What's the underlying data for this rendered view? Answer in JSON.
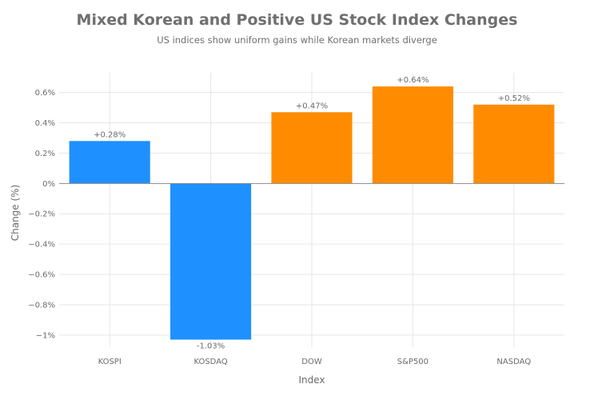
{
  "chart_data": {
    "type": "bar",
    "title": "Mixed Korean and Positive US Stock Index Changes",
    "subtitle": "US indices show uniform gains while Korean markets diverge",
    "xlabel": "Index",
    "ylabel": "Change (%)",
    "categories": [
      "KOSPI",
      "KOSDAQ",
      "DOW",
      "S&P500",
      "NASDAQ"
    ],
    "values": [
      0.28,
      -1.03,
      0.47,
      0.64,
      0.52
    ],
    "data_labels": [
      "+0.28%",
      "-1.03%",
      "+0.47%",
      "+0.64%",
      "+0.52%"
    ],
    "bar_colors": [
      "#1e90ff",
      "#1e90ff",
      "#ff8c00",
      "#ff8c00",
      "#ff8c00"
    ],
    "ylim": [
      -1.08,
      0.73
    ],
    "yticks": [
      0.6,
      0.4,
      0.2,
      0,
      -0.2,
      -0.4,
      -0.6,
      -0.8,
      -1
    ],
    "ytick_labels": [
      "0.6%",
      "0.4%",
      "0.2%",
      "0%",
      "−0.2%",
      "−0.4%",
      "−0.6%",
      "−0.8%",
      "−1%"
    ],
    "grid": true,
    "legend": "none"
  }
}
